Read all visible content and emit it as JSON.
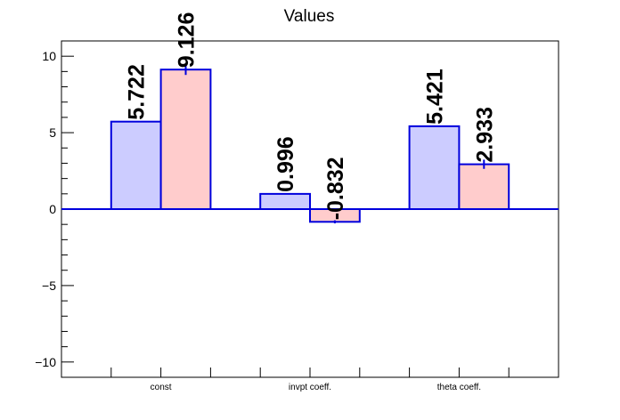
{
  "chart_data": {
    "type": "bar",
    "title": "Values",
    "categories": [
      "const",
      "invpt coeff.",
      "theta coeff."
    ],
    "series": [
      {
        "values": [
          5.722,
          0.996,
          5.421
        ],
        "errors": [
          0.0,
          0.0,
          0.0
        ],
        "labels": [
          "5.722",
          "0.996",
          "5.421"
        ],
        "color": "#ccccff"
      },
      {
        "values": [
          9.126,
          -0.832,
          2.933
        ],
        "errors": [
          0.35,
          0.1,
          0.3
        ],
        "labels": [
          "9.126",
          "-0.832",
          "2.933"
        ],
        "color": "#ffcccc"
      }
    ],
    "ylim": [
      -11,
      11
    ],
    "yticks": [
      -10,
      -5,
      0,
      5,
      10
    ],
    "ytick_labels": [
      "−10",
      "−5",
      "0",
      "5",
      "10"
    ],
    "edge_color": "#0000dd",
    "grid": false,
    "xlabel": "",
    "ylabel": ""
  }
}
